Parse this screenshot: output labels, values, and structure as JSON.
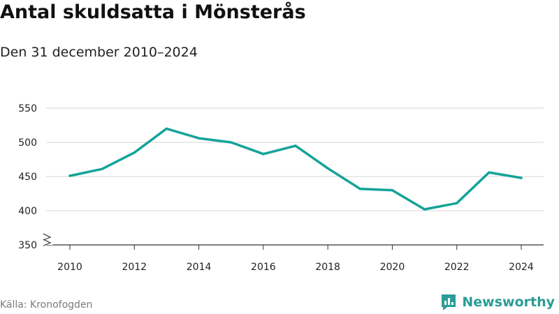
{
  "header": {
    "title": "Antal skuldsatta i Mönsterås",
    "subtitle": "Den 31 december 2010–2024"
  },
  "footer": {
    "source": "Källa: Kronofogden",
    "brand_name": "Newsworthy",
    "brand_icon": "newsworthy-logo-icon"
  },
  "chart_data": {
    "type": "line",
    "title": "Antal skuldsatta i Mönsterås",
    "subtitle": "Den 31 december 2010–2024",
    "xlabel": "",
    "ylabel": "",
    "x": [
      2010,
      2011,
      2012,
      2013,
      2014,
      2015,
      2016,
      2017,
      2018,
      2019,
      2020,
      2021,
      2022,
      2023,
      2024
    ],
    "series": [
      {
        "values": [
          451,
          461,
          485,
          520,
          506,
          500,
          483,
          495,
          462,
          432,
          430,
          402,
          411,
          456,
          448
        ]
      }
    ],
    "xlim": [
      2010,
      2024
    ],
    "ylim": [
      350,
      550
    ],
    "x_ticks": [
      "2010",
      "2012",
      "2014",
      "2016",
      "2018",
      "2020",
      "2022",
      "2024"
    ],
    "y_ticks": [
      "350",
      "400",
      "450",
      "500",
      "550"
    ],
    "y_axis_break": true,
    "grid": true,
    "line_color": "#14a39a"
  }
}
